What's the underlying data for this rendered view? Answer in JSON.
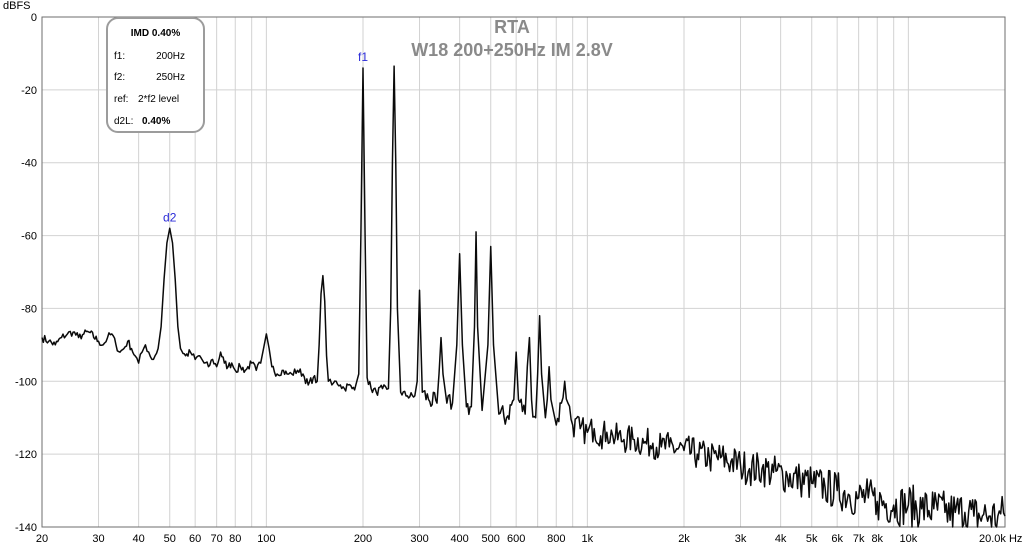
{
  "chart_data": {
    "type": "line",
    "title": "RTA",
    "subtitle": "W18 200+250Hz IM 2.8V",
    "ylabel": "dBFS",
    "xlabel": "Hz",
    "x_scale": "log",
    "xlim": [
      20,
      20000
    ],
    "ylim": [
      -140,
      0
    ],
    "grid": true,
    "y_ticks": [
      {
        "v": 0,
        "label": "0"
      },
      {
        "v": -20,
        "label": "-20"
      },
      {
        "v": -40,
        "label": "-40"
      },
      {
        "v": -60,
        "label": "-60"
      },
      {
        "v": -80,
        "label": "-80"
      },
      {
        "v": -100,
        "label": "-100"
      },
      {
        "v": -120,
        "label": "-120"
      },
      {
        "v": -140,
        "label": "-140"
      }
    ],
    "x_ticks": [
      {
        "v": 20,
        "label": "20"
      },
      {
        "v": 30,
        "label": "30"
      },
      {
        "v": 40,
        "label": "40"
      },
      {
        "v": 50,
        "label": "50"
      },
      {
        "v": 60,
        "label": "60"
      },
      {
        "v": 70,
        "label": "70"
      },
      {
        "v": 80,
        "label": "80"
      },
      {
        "v": 100,
        "label": "100"
      },
      {
        "v": 200,
        "label": "200"
      },
      {
        "v": 300,
        "label": "300"
      },
      {
        "v": 400,
        "label": "400"
      },
      {
        "v": 500,
        "label": "500"
      },
      {
        "v": 600,
        "label": "600"
      },
      {
        "v": 800,
        "label": "800"
      },
      {
        "v": 1000,
        "label": "1k"
      },
      {
        "v": 2000,
        "label": "2k"
      },
      {
        "v": 3000,
        "label": "3k"
      },
      {
        "v": 4000,
        "label": "4k"
      },
      {
        "v": 5000,
        "label": "5k"
      },
      {
        "v": 6000,
        "label": "6k"
      },
      {
        "v": 7000,
        "label": "7k"
      },
      {
        "v": 8000,
        "label": "8k"
      },
      {
        "v": 10000,
        "label": "10k"
      },
      {
        "v": 20000,
        "label": "20.0k Hz"
      }
    ],
    "markers": [
      {
        "label": "f1",
        "x": 200,
        "y": -14
      },
      {
        "label": "d2",
        "x": 50,
        "y": -58
      }
    ],
    "series": [
      {
        "color": "#0a0a0a",
        "points": [
          [
            20,
            -88
          ],
          [
            21,
            -89
          ],
          [
            22,
            -90
          ],
          [
            23,
            -88
          ],
          [
            24,
            -87
          ],
          [
            25,
            -86.5
          ],
          [
            26,
            -88
          ],
          [
            27,
            -87
          ],
          [
            28,
            -86.5
          ],
          [
            30,
            -89
          ],
          [
            31,
            -90
          ],
          [
            32,
            -88
          ],
          [
            33,
            -87
          ],
          [
            34,
            -90
          ],
          [
            35,
            -92
          ],
          [
            36,
            -91
          ],
          [
            37,
            -89
          ],
          [
            38,
            -91
          ],
          [
            39,
            -93
          ],
          [
            40,
            -95
          ],
          [
            41,
            -92
          ],
          [
            42,
            -90
          ],
          [
            43,
            -92
          ],
          [
            44,
            -94
          ],
          [
            45,
            -93
          ],
          [
            46,
            -91
          ],
          [
            47,
            -85
          ],
          [
            48,
            -72
          ],
          [
            49,
            -62
          ],
          [
            50,
            -58
          ],
          [
            51,
            -62
          ],
          [
            52,
            -72
          ],
          [
            53,
            -85
          ],
          [
            54,
            -91
          ],
          [
            56,
            -93
          ],
          [
            58,
            -92
          ],
          [
            60,
            -94
          ],
          [
            62,
            -93
          ],
          [
            64,
            -95
          ],
          [
            66,
            -96
          ],
          [
            68,
            -94
          ],
          [
            70,
            -96
          ],
          [
            72,
            -92
          ],
          [
            74,
            -95
          ],
          [
            76,
            -96
          ],
          [
            78,
            -95
          ],
          [
            80,
            -97
          ],
          [
            83,
            -96
          ],
          [
            86,
            -97
          ],
          [
            90,
            -95
          ],
          [
            93,
            -97
          ],
          [
            96,
            -95
          ],
          [
            98,
            -91
          ],
          [
            100,
            -87
          ],
          [
            102,
            -91
          ],
          [
            104,
            -96
          ],
          [
            108,
            -98
          ],
          [
            112,
            -97
          ],
          [
            116,
            -98
          ],
          [
            120,
            -98
          ],
          [
            125,
            -97
          ],
          [
            130,
            -98
          ],
          [
            135,
            -101
          ],
          [
            140,
            -99
          ],
          [
            144,
            -100
          ],
          [
            146,
            -90
          ],
          [
            148,
            -76
          ],
          [
            150,
            -71
          ],
          [
            152,
            -78
          ],
          [
            154,
            -93
          ],
          [
            156,
            -100
          ],
          [
            160,
            -101
          ],
          [
            165,
            -100
          ],
          [
            170,
            -101
          ],
          [
            175,
            -102
          ],
          [
            180,
            -101
          ],
          [
            185,
            -102
          ],
          [
            190,
            -101
          ],
          [
            194,
            -98
          ],
          [
            197,
            -60
          ],
          [
            200,
            -14
          ],
          [
            203,
            -60
          ],
          [
            206,
            -99
          ],
          [
            212,
            -102
          ],
          [
            220,
            -103
          ],
          [
            230,
            -102
          ],
          [
            240,
            -102
          ],
          [
            244,
            -80
          ],
          [
            247,
            -40
          ],
          [
            250,
            -13.5
          ],
          [
            253,
            -40
          ],
          [
            256,
            -80
          ],
          [
            262,
            -103
          ],
          [
            275,
            -104
          ],
          [
            290,
            -104
          ],
          [
            295,
            -100
          ],
          [
            298,
            -85
          ],
          [
            300,
            -75
          ],
          [
            302,
            -85
          ],
          [
            306,
            -103
          ],
          [
            320,
            -105
          ],
          [
            340,
            -106
          ],
          [
            345,
            -98
          ],
          [
            350,
            -88
          ],
          [
            355,
            -98
          ],
          [
            365,
            -106
          ],
          [
            380,
            -106
          ],
          [
            392,
            -90
          ],
          [
            400,
            -65
          ],
          [
            408,
            -90
          ],
          [
            420,
            -107
          ],
          [
            435,
            -107
          ],
          [
            445,
            -85
          ],
          [
            450,
            -59
          ],
          [
            455,
            -85
          ],
          [
            470,
            -108
          ],
          [
            490,
            -90
          ],
          [
            500,
            -63
          ],
          [
            510,
            -90
          ],
          [
            530,
            -109
          ],
          [
            560,
            -110
          ],
          [
            590,
            -105
          ],
          [
            600,
            -92
          ],
          [
            610,
            -105
          ],
          [
            640,
            -109
          ],
          [
            650,
            -96
          ],
          [
            660,
            -88
          ],
          [
            670,
            -105
          ],
          [
            690,
            -110
          ],
          [
            700,
            -98
          ],
          [
            710,
            -82
          ],
          [
            720,
            -98
          ],
          [
            740,
            -110
          ],
          [
            750,
            -105
          ],
          [
            760,
            -96
          ],
          [
            770,
            -105
          ],
          [
            800,
            -112
          ],
          [
            830,
            -106
          ],
          [
            850,
            -100
          ],
          [
            870,
            -106
          ],
          [
            900,
            -112
          ],
          [
            950,
            -113
          ],
          [
            1000,
            -114
          ],
          [
            1050,
            -113
          ],
          [
            1100,
            -115
          ],
          [
            1150,
            -114
          ],
          [
            1200,
            -115
          ],
          [
            1300,
            -116
          ],
          [
            1400,
            -116
          ],
          [
            1500,
            -117
          ],
          [
            1600,
            -117
          ],
          [
            1700,
            -118
          ],
          [
            1800,
            -118
          ],
          [
            2000,
            -119
          ],
          [
            2200,
            -120
          ],
          [
            2400,
            -121
          ],
          [
            2600,
            -121
          ],
          [
            2800,
            -122
          ],
          [
            3000,
            -123
          ],
          [
            3200,
            -124
          ],
          [
            3500,
            -124
          ],
          [
            3800,
            -125
          ],
          [
            4200,
            -126
          ],
          [
            4600,
            -127
          ],
          [
            5000,
            -128
          ],
          [
            5500,
            -129
          ],
          [
            6000,
            -130
          ],
          [
            6500,
            -131
          ],
          [
            7000,
            -132
          ],
          [
            7500,
            -132
          ],
          [
            8000,
            -133
          ],
          [
            9000,
            -134
          ],
          [
            10000,
            -134
          ],
          [
            11000,
            -135
          ],
          [
            12000,
            -135
          ],
          [
            13000,
            -136
          ],
          [
            14000,
            -136
          ],
          [
            15000,
            -136
          ],
          [
            16000,
            -137
          ],
          [
            17000,
            -137
          ],
          [
            18000,
            -137
          ],
          [
            19000,
            -137
          ],
          [
            20000,
            -137
          ]
        ]
      }
    ]
  },
  "imd_panel": {
    "header": "IMD 0.40%",
    "rows": [
      {
        "key": "f1:",
        "value": "200Hz"
      },
      {
        "key": "f2:",
        "value": "250Hz"
      },
      {
        "key": "ref:",
        "value": "2*f2 level"
      },
      {
        "key": "d2L:",
        "value": "0.40%"
      }
    ]
  }
}
